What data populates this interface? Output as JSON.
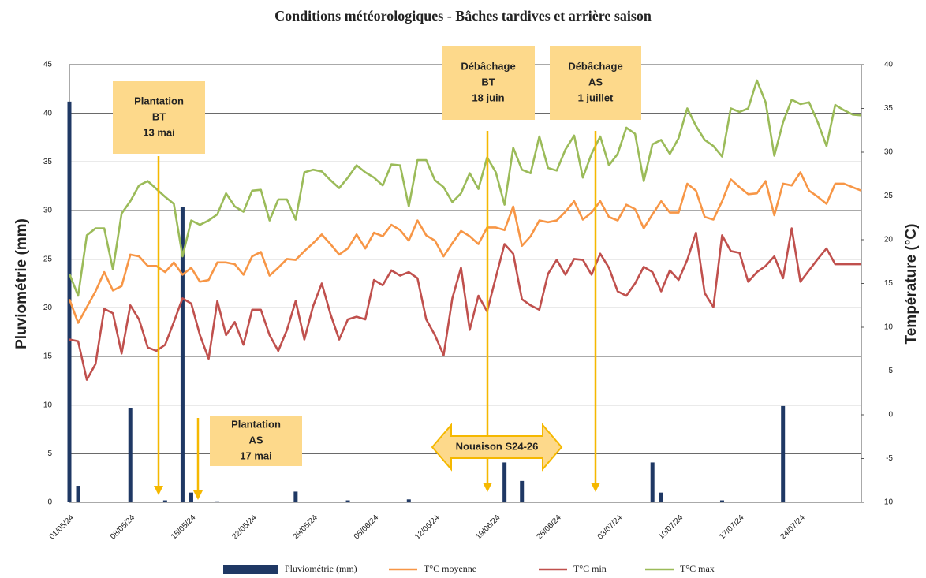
{
  "chart_data": {
    "type": "bar-line",
    "title": "Conditions météorologiques - Bâches tardives et arrière saison",
    "y_label": "Pluviométrie (mm)",
    "y2_label": "Température (°C)",
    "categories": [
      "01/05/24",
      null,
      null,
      null,
      null,
      null,
      null,
      "08/05/24",
      null,
      null,
      null,
      null,
      null,
      null,
      "15/05/24",
      null,
      null,
      null,
      null,
      null,
      null,
      "22/05/24",
      null,
      null,
      null,
      null,
      null,
      null,
      "29/05/24",
      null,
      null,
      null,
      null,
      null,
      null,
      "05/06/24",
      null,
      null,
      null,
      null,
      null,
      null,
      "12/06/24",
      null,
      null,
      null,
      null,
      null,
      null,
      "19/06/24",
      null,
      null,
      null,
      null,
      null,
      null,
      "26/06/24",
      null,
      null,
      null,
      null,
      null,
      null,
      "03/07/24",
      null,
      null,
      null,
      null,
      null,
      null,
      "10/07/24",
      null,
      null,
      null,
      null,
      null,
      null,
      "17/07/24",
      null,
      null,
      null,
      null,
      null,
      null,
      "24/07/24",
      null,
      null,
      null,
      null,
      null,
      null,
      null
    ],
    "series": [
      {
        "name": "Pluviométrie (mm)",
        "type": "bar",
        "color": "#1f3864",
        "values": [
          41.2,
          1.7,
          0,
          0,
          0,
          0,
          0,
          9.7,
          0,
          0,
          0,
          0.2,
          0,
          30.4,
          1.0,
          0,
          0,
          0.1,
          0,
          0,
          0,
          0,
          0,
          0,
          0,
          0,
          1.1,
          0,
          0,
          0,
          0,
          0,
          0.2,
          0,
          0,
          0,
          0,
          0,
          0,
          0.3,
          0,
          0,
          0,
          0,
          0,
          0,
          0,
          0,
          0,
          0,
          4.1,
          0,
          2.2,
          0,
          0,
          0,
          0,
          0,
          0,
          0,
          0,
          0,
          0,
          0,
          0,
          0,
          0,
          4.1,
          1.0,
          0,
          0,
          0,
          0,
          0,
          0,
          0.2,
          0,
          0,
          0,
          0,
          0,
          0,
          9.9,
          0,
          0,
          0,
          0,
          0,
          0,
          0,
          0,
          0
        ]
      },
      {
        "name": "T°C moyenne",
        "type": "line",
        "axis": "y2",
        "color": "#f79646",
        "values": [
          13.2,
          10.5,
          12.3,
          14.1,
          16.3,
          14.2,
          14.7,
          18.3,
          18.1,
          17,
          17,
          16.3,
          17.4,
          16,
          16.8,
          15.2,
          15.4,
          17.4,
          17.4,
          17.2,
          16,
          18.1,
          18.6,
          15.9,
          16.8,
          17.8,
          17.7,
          18.7,
          19.6,
          20.6,
          19.5,
          18.3,
          19,
          20.6,
          19,
          20.8,
          20.4,
          21.7,
          21.1,
          19.9,
          22.2,
          20.5,
          19.9,
          18.1,
          19.6,
          21,
          20.4,
          19.5,
          21.4,
          21.4,
          21.1,
          23.8,
          19.3,
          20.4,
          22.2,
          22,
          22.2,
          23.2,
          24.4,
          22.3,
          23.1,
          24.4,
          22.6,
          22.2,
          24,
          23.5,
          21.3,
          22.9,
          24.4,
          23.1,
          23.1,
          26.4,
          25.6,
          22.6,
          22.3,
          24.4,
          26.9,
          26,
          25.2,
          25.3,
          26.7,
          22.8,
          26.4,
          26.2,
          27.7,
          25.6,
          24.9,
          24.1,
          26.4,
          26.4,
          26,
          25.6
        ]
      },
      {
        "name": "T°C min",
        "type": "line",
        "axis": "y2",
        "color": "#c0504d",
        "values": [
          8.6,
          8.4,
          4,
          5.8,
          12.1,
          11.6,
          7,
          12.5,
          10.9,
          7.7,
          7.3,
          8,
          10.6,
          13.3,
          12.7,
          9.1,
          6.4,
          13,
          9.1,
          10.6,
          8,
          12,
          12,
          9.1,
          7.3,
          9.7,
          13,
          8.6,
          12.4,
          15,
          11.5,
          8.6,
          10.9,
          11.2,
          10.9,
          15.4,
          14.8,
          16.5,
          15.9,
          16.3,
          15.6,
          10.9,
          9.1,
          6.8,
          13.3,
          16.8,
          9.7,
          13.6,
          11.8,
          15.7,
          19.5,
          18.4,
          13.2,
          12.5,
          12,
          16.1,
          17.7,
          16,
          17.8,
          17.7,
          16,
          18.4,
          16.8,
          14.1,
          13.6,
          15,
          16.9,
          16.3,
          14.1,
          16.5,
          15.4,
          17.7,
          20.8,
          13.9,
          12.3,
          20.5,
          18.7,
          18.5,
          15.2,
          16.3,
          17,
          18.1,
          15.6,
          21.3,
          15.2,
          16.5,
          17.8,
          19,
          17.2,
          17.2,
          17.2,
          17.2
        ]
      },
      {
        "name": "T°C max",
        "type": "line",
        "axis": "y2",
        "color": "#9bbb59",
        "values": [
          16.1,
          13.6,
          20.5,
          21.3,
          21.3,
          16.6,
          23,
          24.4,
          26.2,
          26.7,
          25.8,
          24.9,
          24.1,
          18.1,
          22.2,
          21.7,
          22.2,
          22.9,
          25.3,
          23.8,
          23.2,
          25.6,
          25.7,
          22.2,
          24.6,
          24.6,
          22.3,
          27.7,
          28,
          27.8,
          26.8,
          25.9,
          27.1,
          28.5,
          27.7,
          27.1,
          26.2,
          28.6,
          28.5,
          23.8,
          29.1,
          29.1,
          26.8,
          26,
          24.3,
          25.3,
          27.6,
          25.8,
          29.4,
          27.7,
          24,
          30.5,
          28,
          27.6,
          31.8,
          28.2,
          27.9,
          30.3,
          31.9,
          27.1,
          29.8,
          31.8,
          28.5,
          29.8,
          32.8,
          32.1,
          26.7,
          30.9,
          31.4,
          29.8,
          31.6,
          35,
          33,
          31.4,
          30.7,
          29.5,
          35,
          34.6,
          35,
          38.2,
          35.7,
          29.6,
          33.4,
          36,
          35.5,
          35.7,
          33.4,
          30.7,
          35.4,
          34.8,
          34.3,
          34.2
        ]
      }
    ],
    "ylim": [
      0,
      45
    ],
    "yticks": [
      0,
      5,
      10,
      15,
      20,
      25,
      30,
      35,
      40,
      45
    ],
    "y2lim": [
      -10,
      40
    ],
    "y2ticks": [
      -10,
      -5,
      0,
      5,
      10,
      15,
      20,
      25,
      30,
      35,
      40
    ],
    "grid": true,
    "legend": "bottom",
    "annotations": [
      {
        "lines": [
          "Plantation",
          "BT",
          "13 mai"
        ]
      },
      {
        "lines": [
          "Plantation",
          "AS",
          "17 mai"
        ]
      },
      {
        "lines": [
          "Débâchage",
          "BT",
          "18 juin"
        ]
      },
      {
        "lines": [
          "Débâchage",
          "AS",
          "1 juillet"
        ]
      },
      {
        "lines": [
          "Nouaison S24-26"
        ]
      }
    ]
  }
}
